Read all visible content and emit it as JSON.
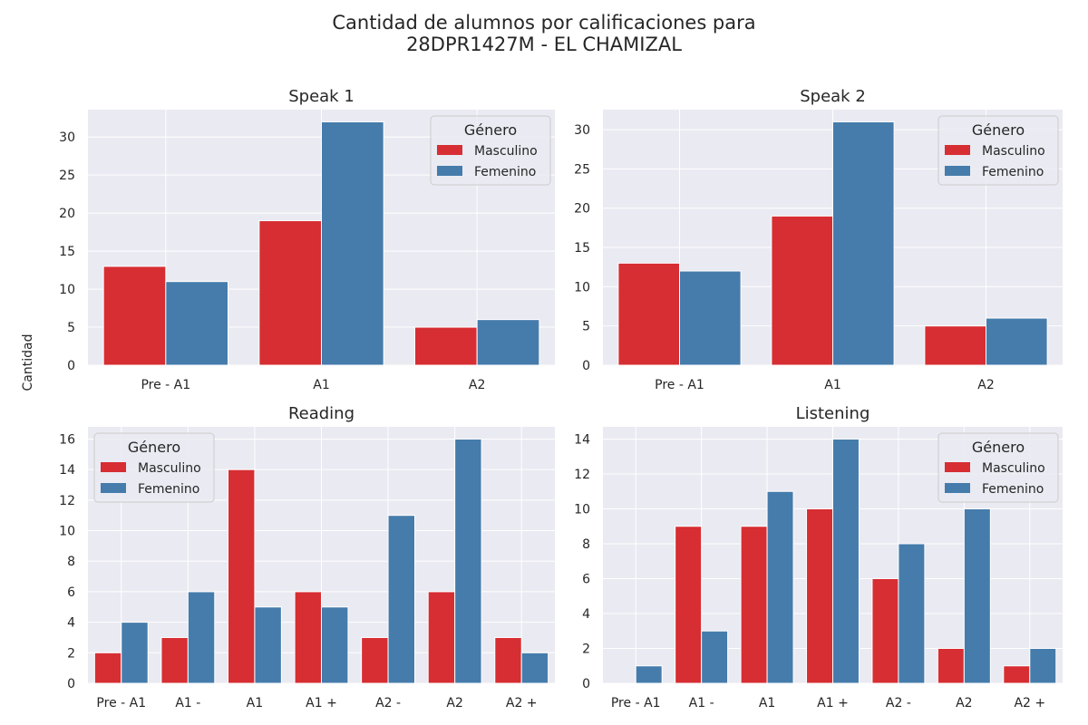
{
  "suptitle": {
    "line1": "Cantidad de alumnos por calificaciones para",
    "line2": "28DPR1427M - EL CHAMIZAL"
  },
  "shared_ylabel": "Cantidad",
  "colors": {
    "Masculino": "#d62e32",
    "Femenino": "#457cab",
    "plot_bg": "#eaeaf2",
    "grid": "#ffffff"
  },
  "chart_data": [
    {
      "type": "bar",
      "title": "Speak 1",
      "categories": [
        "Pre - A1",
        "A1",
        "A2"
      ],
      "series": [
        {
          "name": "Masculino",
          "values": [
            13,
            19,
            5
          ]
        },
        {
          "name": "Femenino",
          "values": [
            11,
            32,
            6
          ]
        }
      ],
      "ylim": [
        0,
        33.6
      ],
      "yticks": [
        0,
        5,
        10,
        15,
        20,
        25,
        30
      ],
      "legend": {
        "title": "Género",
        "placement": "top-right"
      }
    },
    {
      "type": "bar",
      "title": "Speak 2",
      "categories": [
        "Pre - A1",
        "A1",
        "A2"
      ],
      "series": [
        {
          "name": "Masculino",
          "values": [
            13,
            19,
            5
          ]
        },
        {
          "name": "Femenino",
          "values": [
            12,
            31,
            6
          ]
        }
      ],
      "ylim": [
        0,
        32.55
      ],
      "yticks": [
        0,
        5,
        10,
        15,
        20,
        25,
        30
      ],
      "legend": {
        "title": "Género",
        "placement": "top-right"
      }
    },
    {
      "type": "bar",
      "title": "Reading",
      "categories": [
        "Pre - A1",
        "A1 -",
        "A1",
        "A1 +",
        "A2 -",
        "A2",
        "A2 +"
      ],
      "series": [
        {
          "name": "Masculino",
          "values": [
            2,
            3,
            14,
            6,
            3,
            6,
            3
          ]
        },
        {
          "name": "Femenino",
          "values": [
            4,
            6,
            5,
            5,
            11,
            16,
            2
          ]
        }
      ],
      "ylim": [
        0,
        16.8
      ],
      "yticks": [
        0,
        2,
        4,
        6,
        8,
        10,
        12,
        14,
        16
      ],
      "legend": {
        "title": "Género",
        "placement": "top-left"
      }
    },
    {
      "type": "bar",
      "title": "Listening",
      "categories": [
        "Pre - A1",
        "A1 -",
        "A1",
        "A1 +",
        "A2 -",
        "A2",
        "A2 +"
      ],
      "series": [
        {
          "name": "Masculino",
          "values": [
            0,
            9,
            9,
            10,
            6,
            2,
            1
          ]
        },
        {
          "name": "Femenino",
          "values": [
            1,
            3,
            11,
            14,
            8,
            10,
            2
          ]
        }
      ],
      "ylim": [
        0,
        14.7
      ],
      "yticks": [
        0,
        2,
        4,
        6,
        8,
        10,
        12,
        14
      ],
      "legend": {
        "title": "Género",
        "placement": "top-right"
      }
    }
  ]
}
